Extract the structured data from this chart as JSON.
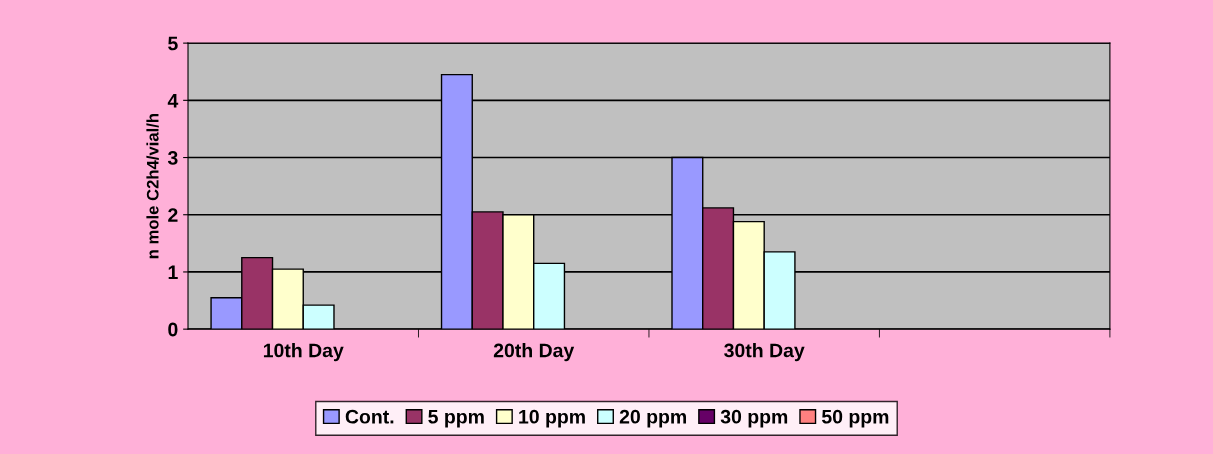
{
  "chart_data": {
    "type": "bar",
    "ylabel": "n mole C2h4/vial/h",
    "categories": [
      "10th Day",
      "20th Day",
      "30th Day",
      null
    ],
    "series": [
      {
        "name": "Cont.",
        "color": "#9999ff",
        "values": [
          0.55,
          4.45,
          3.0,
          null
        ]
      },
      {
        "name": "5 ppm",
        "color": "#993366",
        "values": [
          1.25,
          2.05,
          2.12,
          null
        ]
      },
      {
        "name": "10 ppm",
        "color": "#ffffcc",
        "values": [
          1.05,
          2.0,
          1.88,
          null
        ]
      },
      {
        "name": "20 ppm",
        "color": "#ccffff",
        "values": [
          0.42,
          1.15,
          1.35,
          null
        ]
      },
      {
        "name": "30 ppm",
        "color": "#660066",
        "values": [
          null,
          null,
          null,
          null
        ]
      },
      {
        "name": "50 ppm",
        "color": "#ff8080",
        "values": [
          null,
          null,
          null,
          null
        ]
      }
    ],
    "ylim": [
      0,
      5
    ],
    "yticks": [
      0,
      1,
      2,
      3,
      4,
      5
    ],
    "grid": "y",
    "legend": "bottom"
  }
}
